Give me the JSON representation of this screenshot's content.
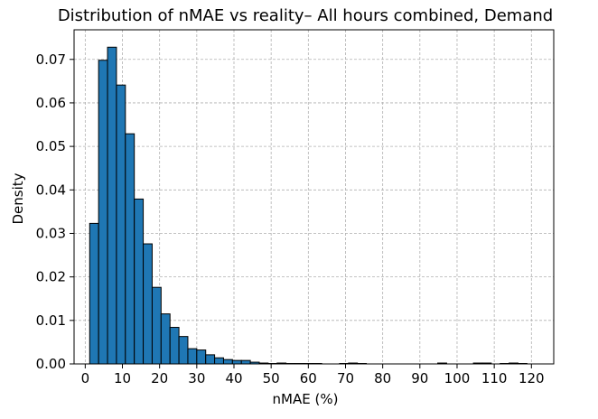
{
  "chart_data": {
    "type": "bar",
    "title": "Distribution of nMAE vs reality– All hours combined, Demand",
    "xlabel": "nMAE (%)",
    "ylabel": "Density",
    "xlim": [
      -3,
      126
    ],
    "ylim": [
      0,
      0.0768
    ],
    "grid": true,
    "bar_color": "#1f77b4",
    "edge_color": "#000000",
    "bin_width": 2.4,
    "bin_start": 1.2,
    "values": [
      0.0323,
      0.0698,
      0.0728,
      0.0641,
      0.0529,
      0.0379,
      0.0276,
      0.0176,
      0.0115,
      0.0084,
      0.0063,
      0.0035,
      0.0032,
      0.0021,
      0.0014,
      0.001,
      0.0008,
      0.0008,
      0.0004,
      0.0002,
      0.0001,
      0.0002,
      0.0001,
      0.0001,
      0.0001,
      0.0001,
      0,
      0,
      0.0001,
      0.0002,
      0.0001,
      0,
      0,
      0,
      0,
      0,
      0,
      0,
      0,
      0.0002,
      0,
      0,
      0,
      0.0002,
      0.0002,
      0,
      0.0001,
      0.0002,
      0.0001,
      0
    ],
    "x_ticks": [
      0,
      10,
      20,
      30,
      40,
      50,
      60,
      70,
      80,
      90,
      100,
      110,
      120
    ],
    "y_ticks": [
      "0.00",
      "0.01",
      "0.02",
      "0.03",
      "0.04",
      "0.05",
      "0.06",
      "0.07"
    ],
    "y_tick_values": [
      0,
      0.01,
      0.02,
      0.03,
      0.04,
      0.05,
      0.06,
      0.07
    ]
  }
}
